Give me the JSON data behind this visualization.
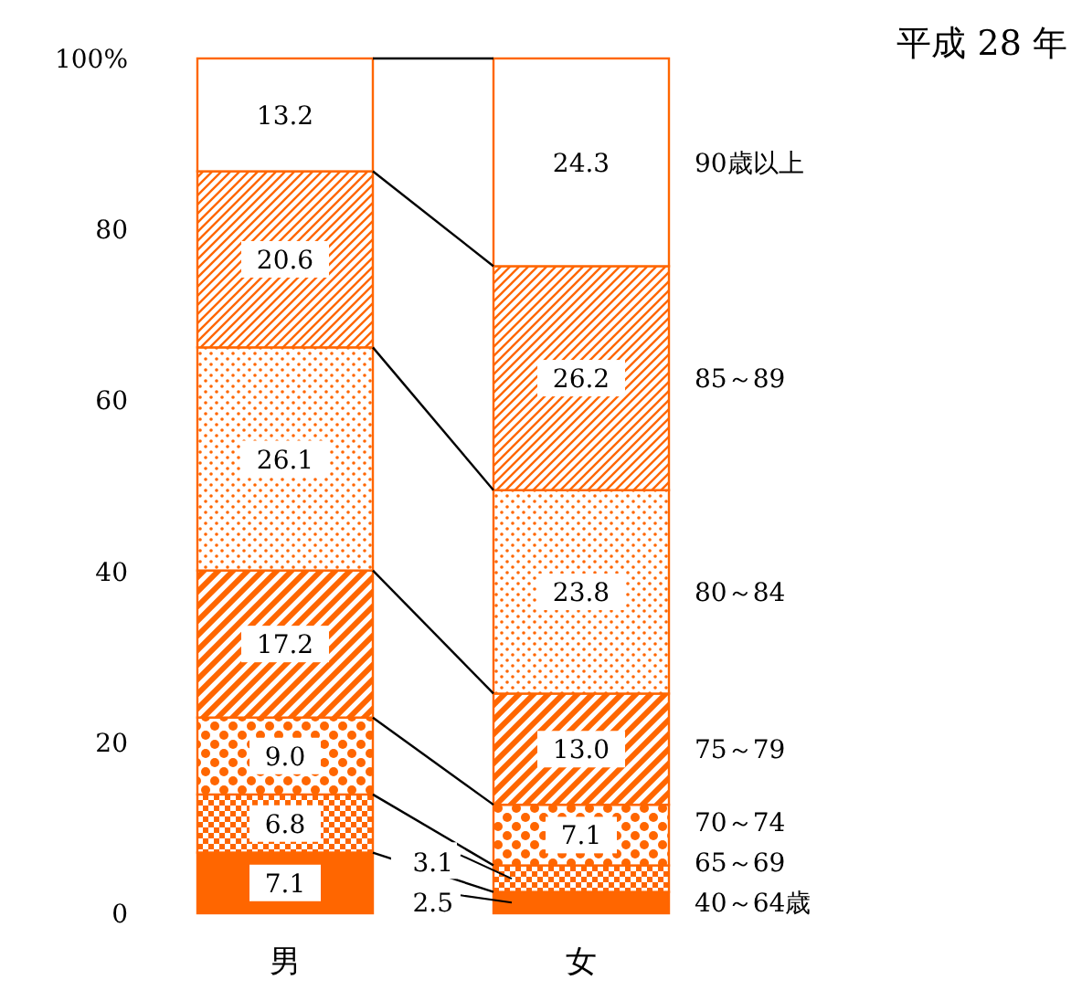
{
  "chart_data": {
    "type": "bar",
    "stacked": true,
    "title": "平成 28 年",
    "categories": [
      "男",
      "女"
    ],
    "ylim": [
      0,
      100
    ],
    "yticks": [
      0,
      20,
      40,
      60,
      80,
      {
        "value": 100,
        "label": "100%"
      }
    ],
    "series": [
      {
        "name": "40～64歳",
        "color": "#ff6600",
        "values": [
          7.1,
          2.5
        ],
        "value_labels": [
          "7.1",
          "2.5"
        ]
      },
      {
        "name": "65～69",
        "color": "#ff6600",
        "values": [
          6.8,
          3.1
        ],
        "value_labels": [
          "6.8",
          "3.1"
        ]
      },
      {
        "name": "70～74",
        "color": "#ff6600",
        "values": [
          9.0,
          7.1
        ],
        "value_labels": [
          "9.0",
          "7.1"
        ]
      },
      {
        "name": "75～79",
        "color": "#ff6600",
        "values": [
          17.2,
          13.0
        ],
        "value_labels": [
          "17.2",
          "13.0"
        ]
      },
      {
        "name": "80～84",
        "color": "#ff6600",
        "values": [
          26.1,
          23.8
        ],
        "value_labels": [
          "26.1",
          "23.8"
        ]
      },
      {
        "name": "85～89",
        "color": "#ff6600",
        "values": [
          20.6,
          26.2
        ],
        "value_labels": [
          "20.6",
          "26.2"
        ]
      },
      {
        "name": "90歳以上",
        "color": "#ff6600",
        "values": [
          13.2,
          24.3
        ],
        "value_labels": [
          "13.2",
          "24.3"
        ]
      }
    ]
  }
}
